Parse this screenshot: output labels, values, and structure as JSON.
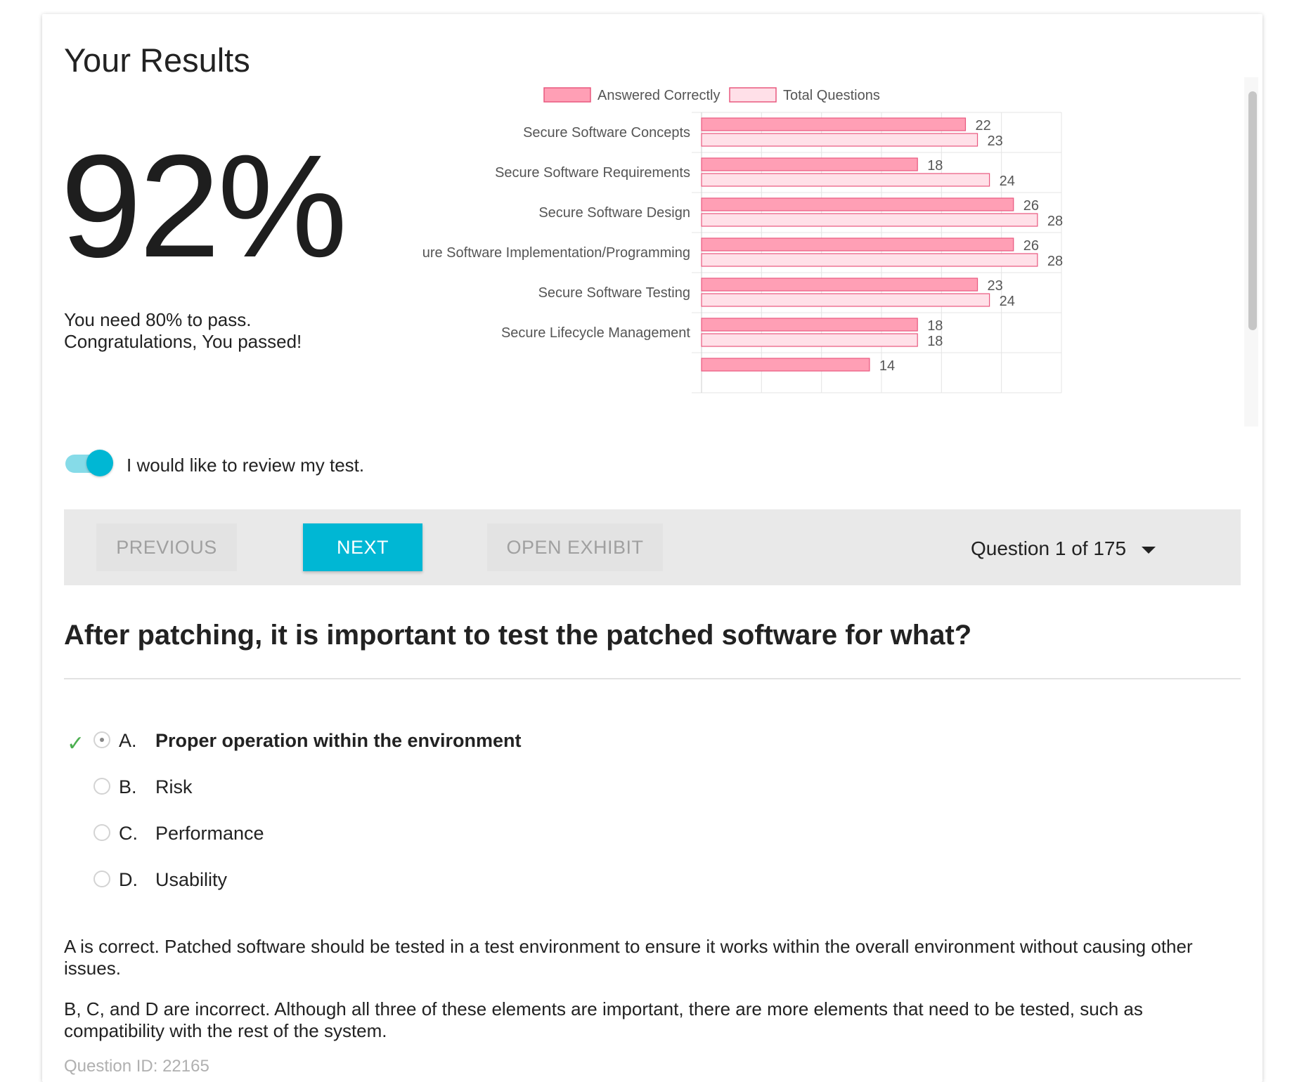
{
  "results": {
    "title": "Your Results",
    "score": "92%",
    "pass_requirement": "You need 80% to pass.",
    "pass_message": "Congratulations, You passed!"
  },
  "chart_data": {
    "type": "bar",
    "orientation": "horizontal",
    "categories": [
      "Secure Software Concepts",
      "Secure Software Requirements",
      "Secure Software Design",
      "Secure Software Implementation/Programming",
      "Secure Software Testing",
      "Secure Lifecycle Management",
      ""
    ],
    "series": [
      {
        "name": "Answered Correctly",
        "values": [
          22,
          18,
          26,
          26,
          23,
          18,
          14
        ],
        "fill": "#ff9fb5",
        "stroke": "#e8587f"
      },
      {
        "name": "Total Questions",
        "values": [
          23,
          24,
          28,
          28,
          24,
          18,
          null
        ],
        "fill": "#ffe0e8",
        "stroke": "#e8587f"
      }
    ],
    "xlim": [
      0,
      30
    ],
    "grid": true,
    "legend": "top"
  },
  "review": {
    "toggle_on": true,
    "label": "I would like to review my test."
  },
  "nav": {
    "previous_label": "PREVIOUS",
    "next_label": "NEXT",
    "exhibit_label": "OPEN EXHIBIT",
    "question_counter": "Question 1 of 175"
  },
  "question": {
    "text": "After patching, it is important to test the patched software for what?",
    "options": [
      {
        "letter": "A.",
        "text": "Proper operation within the environment",
        "correct": true
      },
      {
        "letter": "B.",
        "text": "Risk",
        "correct": false
      },
      {
        "letter": "C.",
        "text": "Performance",
        "correct": false
      },
      {
        "letter": "D.",
        "text": "Usability",
        "correct": false
      }
    ],
    "explanation_correct": "A is correct. Patched software should be tested in a test environment to ensure it works within the overall environment without causing other issues.",
    "explanation_incorrect": "B, C, and D are incorrect. Although all three of these elements are important, there are more elements that need to be tested, such as compatibility with the rest of the system.",
    "question_id": "Question ID: 22165"
  },
  "icons": {
    "correct_mark": "check-icon",
    "counter_dropdown": "caret-down-icon"
  },
  "colors": {
    "accent": "#00b7d4",
    "toggle_track": "#86dbe8",
    "correct_check": "#4caf50"
  }
}
